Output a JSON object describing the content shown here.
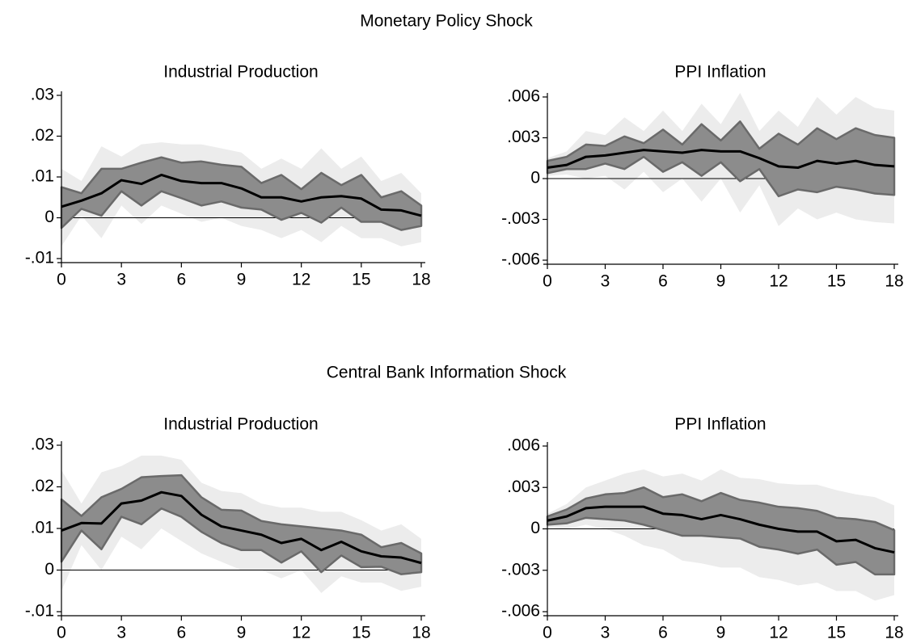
{
  "section_titles": [
    "Monetary Policy Shock",
    "Central Bank Information Shock"
  ],
  "chart_data": [
    {
      "type": "line",
      "title": "Industrial Production",
      "x": [
        0,
        1,
        2,
        3,
        4,
        5,
        6,
        7,
        8,
        9,
        10,
        11,
        12,
        13,
        14,
        15,
        16,
        17,
        18
      ],
      "xlim": [
        0,
        18
      ],
      "xticks": [
        0,
        3,
        6,
        9,
        12,
        15,
        18
      ],
      "ylim": [
        -0.01,
        0.03
      ],
      "yticks": [
        {
          "value": -0.01,
          "label": "-.01"
        },
        0,
        {
          "value": 0.01,
          "label": ".01"
        },
        {
          "value": 0.02,
          "label": ".02"
        },
        {
          "value": 0.03,
          "label": ".03"
        }
      ],
      "zero_line": true,
      "bands": [
        {
          "color": "#ececec",
          "upper": [
            0.012,
            0.009,
            0.0175,
            0.015,
            0.018,
            0.0185,
            0.018,
            0.018,
            0.017,
            0.016,
            0.012,
            0.0145,
            0.012,
            0.017,
            0.012,
            0.015,
            0.009,
            0.011,
            0.006
          ],
          "lower": [
            -0.007,
            0.0005,
            -0.005,
            0.003,
            -0.0015,
            0.003,
            0.001,
            -0.001,
            0.0,
            -0.002,
            -0.003,
            -0.005,
            -0.003,
            -0.006,
            -0.002,
            -0.005,
            -0.005,
            -0.007,
            -0.006
          ]
        },
        {
          "color": "#8c8c8c",
          "edge_color": "#6a6a6a",
          "upper": [
            0.0075,
            0.006,
            0.012,
            0.012,
            0.0135,
            0.0148,
            0.0135,
            0.0138,
            0.013,
            0.0125,
            0.0085,
            0.0105,
            0.007,
            0.011,
            0.008,
            0.0105,
            0.005,
            0.0065,
            0.003
          ],
          "lower": [
            -0.0025,
            0.0022,
            0.0005,
            0.0065,
            0.003,
            0.0065,
            0.0048,
            0.003,
            0.004,
            0.0025,
            0.002,
            -0.0005,
            0.0012,
            -0.0012,
            0.0025,
            -0.001,
            -0.001,
            -0.003,
            -0.002
          ]
        }
      ],
      "line": {
        "color": "#000000",
        "values": [
          0.0027,
          0.0042,
          0.006,
          0.0092,
          0.0083,
          0.0105,
          0.009,
          0.0085,
          0.0085,
          0.0072,
          0.005,
          0.005,
          0.004,
          0.005,
          0.0053,
          0.0047,
          0.002,
          0.0018,
          0.0005
        ]
      }
    },
    {
      "type": "line",
      "title": "PPI Inflation",
      "x": [
        0,
        1,
        2,
        3,
        4,
        5,
        6,
        7,
        8,
        9,
        10,
        11,
        12,
        13,
        14,
        15,
        16,
        17,
        18
      ],
      "xlim": [
        0,
        18
      ],
      "xticks": [
        0,
        3,
        6,
        9,
        12,
        15,
        18
      ],
      "ylim": [
        -0.006,
        0.006
      ],
      "yticks": [
        {
          "value": -0.006,
          "label": "-.006"
        },
        {
          "value": -0.003,
          "label": "-.003"
        },
        0,
        {
          "value": 0.003,
          "label": ".003"
        },
        {
          "value": 0.006,
          "label": ".006"
        }
      ],
      "zero_line": true,
      "bands": [
        {
          "color": "#ececec",
          "upper": [
            0.0015,
            0.002,
            0.0035,
            0.0032,
            0.0045,
            0.0035,
            0.005,
            0.0035,
            0.0055,
            0.004,
            0.0063,
            0.0035,
            0.005,
            0.0038,
            0.006,
            0.0047,
            0.006,
            0.0052,
            0.005
          ],
          "lower": [
            0.0002,
            0.0003,
            0.0,
            0.0002,
            -0.0008,
            0.0005,
            -0.001,
            0.0,
            -0.0017,
            0.0,
            -0.0025,
            -0.0005,
            -0.0035,
            -0.0022,
            -0.003,
            -0.0025,
            -0.003,
            -0.0032,
            -0.0033
          ]
        },
        {
          "color": "#8c8c8c",
          "edge_color": "#6a6a6a",
          "upper": [
            0.0013,
            0.0016,
            0.0025,
            0.0024,
            0.0031,
            0.0026,
            0.0036,
            0.0025,
            0.004,
            0.0028,
            0.0042,
            0.0022,
            0.0033,
            0.0025,
            0.0037,
            0.0029,
            0.0037,
            0.0032,
            0.003
          ],
          "lower": [
            0.0004,
            0.0007,
            0.0007,
            0.0011,
            0.0007,
            0.0016,
            0.0005,
            0.0012,
            0.0002,
            0.0012,
            -0.0002,
            0.0007,
            -0.0013,
            -0.0008,
            -0.001,
            -0.0006,
            -0.0008,
            -0.0011,
            -0.0012
          ]
        }
      ],
      "line": {
        "color": "#000000",
        "values": [
          0.0008,
          0.001,
          0.0016,
          0.0017,
          0.0019,
          0.0021,
          0.002,
          0.0019,
          0.0021,
          0.002,
          0.002,
          0.0015,
          0.0009,
          0.0008,
          0.0013,
          0.0011,
          0.0013,
          0.001,
          0.0009
        ]
      }
    },
    {
      "type": "line",
      "title": "Industrial Production",
      "x": [
        0,
        1,
        2,
        3,
        4,
        5,
        6,
        7,
        8,
        9,
        10,
        11,
        12,
        13,
        14,
        15,
        16,
        17,
        18
      ],
      "xlim": [
        0,
        18
      ],
      "xticks": [
        0,
        3,
        6,
        9,
        12,
        15,
        18
      ],
      "ylim": [
        -0.01,
        0.03
      ],
      "yticks": [
        {
          "value": -0.01,
          "label": "-.01"
        },
        0,
        {
          "value": 0.01,
          "label": ".01"
        },
        {
          "value": 0.02,
          "label": ".02"
        },
        {
          "value": 0.03,
          "label": ".03"
        }
      ],
      "zero_line": true,
      "bands": [
        {
          "color": "#ececec",
          "upper": [
            0.024,
            0.016,
            0.0235,
            0.025,
            0.0275,
            0.0275,
            0.0265,
            0.021,
            0.019,
            0.0185,
            0.016,
            0.015,
            0.015,
            0.014,
            0.014,
            0.012,
            0.0095,
            0.011,
            0.0075
          ],
          "lower": [
            -0.005,
            0.006,
            0.0,
            0.008,
            0.005,
            0.01,
            0.007,
            0.004,
            0.002,
            0.0,
            0.0,
            -0.002,
            0.0,
            -0.0055,
            -0.0015,
            -0.003,
            -0.003,
            -0.005,
            -0.004
          ]
        },
        {
          "color": "#8c8c8c",
          "edge_color": "#6a6a6a",
          "upper": [
            0.017,
            0.013,
            0.0175,
            0.0195,
            0.0223,
            0.0226,
            0.0228,
            0.0175,
            0.0145,
            0.0143,
            0.0118,
            0.011,
            0.0105,
            0.01,
            0.0095,
            0.0085,
            0.0055,
            0.0065,
            0.004
          ],
          "lower": [
            0.002,
            0.0095,
            0.005,
            0.0128,
            0.011,
            0.0148,
            0.0128,
            0.0092,
            0.0065,
            0.0048,
            0.0048,
            0.0018,
            0.0045,
            -0.0005,
            0.0035,
            0.0007,
            0.0008,
            -0.001,
            -0.0005
          ]
        }
      ],
      "line": {
        "color": "#000000",
        "values": [
          0.0095,
          0.0113,
          0.0112,
          0.016,
          0.0167,
          0.0187,
          0.0178,
          0.0133,
          0.0105,
          0.0095,
          0.0085,
          0.0065,
          0.0075,
          0.0048,
          0.0068,
          0.0045,
          0.0033,
          0.003,
          0.0017
        ]
      }
    },
    {
      "type": "line",
      "title": "PPI Inflation",
      "x": [
        0,
        1,
        2,
        3,
        4,
        5,
        6,
        7,
        8,
        9,
        10,
        11,
        12,
        13,
        14,
        15,
        16,
        17,
        18
      ],
      "xlim": [
        0,
        18
      ],
      "xticks": [
        0,
        3,
        6,
        9,
        12,
        15,
        18
      ],
      "ylim": [
        -0.006,
        0.006
      ],
      "yticks": [
        {
          "value": -0.006,
          "label": "-.006"
        },
        {
          "value": -0.003,
          "label": "-.003"
        },
        0,
        {
          "value": 0.003,
          "label": ".003"
        },
        {
          "value": 0.006,
          "label": ".006"
        }
      ],
      "zero_line": true,
      "bands": [
        {
          "color": "#ececec",
          "upper": [
            0.0011,
            0.0018,
            0.003,
            0.0035,
            0.004,
            0.0043,
            0.0038,
            0.004,
            0.0035,
            0.0043,
            0.0037,
            0.0036,
            0.0033,
            0.0032,
            0.0032,
            0.0028,
            0.0025,
            0.0023,
            0.0017
          ],
          "lower": [
            0.0001,
            0.0,
            0.0003,
            0.0,
            -0.0005,
            -0.0012,
            -0.0015,
            -0.0023,
            -0.0025,
            -0.0028,
            -0.0028,
            -0.0035,
            -0.0037,
            -0.0041,
            -0.0039,
            -0.0045,
            -0.0045,
            -0.0052,
            -0.0048
          ]
        },
        {
          "color": "#8c8c8c",
          "edge_color": "#6a6a6a",
          "upper": [
            0.0009,
            0.0014,
            0.0022,
            0.0025,
            0.0026,
            0.003,
            0.0023,
            0.0025,
            0.002,
            0.0026,
            0.0021,
            0.0019,
            0.0016,
            0.0015,
            0.0013,
            0.0008,
            0.0007,
            0.0005,
            -0.0001
          ],
          "lower": [
            0.0003,
            0.0004,
            0.0008,
            0.0007,
            0.0006,
            0.0003,
            -0.0001,
            -0.0005,
            -0.0005,
            -0.0006,
            -0.0007,
            -0.0013,
            -0.0015,
            -0.0018,
            -0.0015,
            -0.0026,
            -0.0024,
            -0.0033,
            -0.0033
          ]
        }
      ],
      "line": {
        "color": "#000000",
        "values": [
          0.0006,
          0.0009,
          0.0015,
          0.0016,
          0.0016,
          0.0016,
          0.0011,
          0.001,
          0.0007,
          0.001,
          0.0007,
          0.0003,
          0.0,
          -0.0002,
          -0.0002,
          -0.0009,
          -0.0008,
          -0.0014,
          -0.0017
        ]
      }
    }
  ]
}
